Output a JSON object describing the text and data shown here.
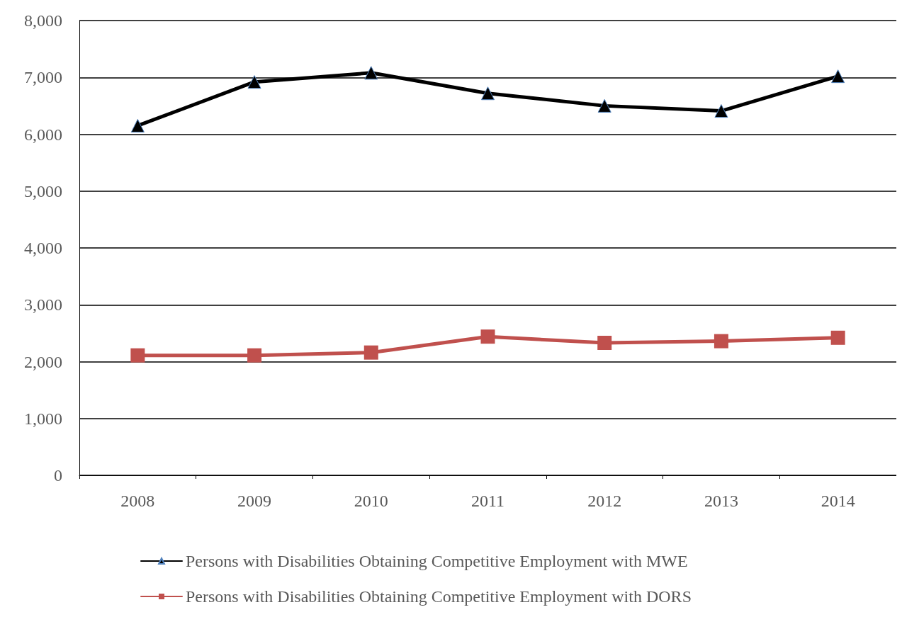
{
  "chart_data": {
    "type": "line",
    "categories": [
      "2008",
      "2009",
      "2010",
      "2011",
      "2012",
      "2013",
      "2014"
    ],
    "series": [
      {
        "name": "Persons with Disabilities Obtaining Competitive Employment with MWE",
        "color": "#000000",
        "marker": "triangle",
        "values": [
          6150,
          6920,
          7080,
          6720,
          6500,
          6410,
          7020
        ]
      },
      {
        "name": "Persons with Disabilities Obtaining Competitive Employment with DORS",
        "color": "#c0504d",
        "marker": "square",
        "values": [
          2110,
          2110,
          2160,
          2440,
          2330,
          2360,
          2420
        ]
      }
    ],
    "ylim": [
      0,
      8000
    ],
    "yticks": [
      {
        "value": 0,
        "label": "0"
      },
      {
        "value": 1000,
        "label": "1,000"
      },
      {
        "value": 2000,
        "label": "2,000"
      },
      {
        "value": 3000,
        "label": "3,000"
      },
      {
        "value": 4000,
        "label": "4,000"
      },
      {
        "value": 5000,
        "label": "5,000"
      },
      {
        "value": 6000,
        "label": "6,000"
      },
      {
        "value": 7000,
        "label": "7,000"
      },
      {
        "value": 8000,
        "label": "8,000"
      }
    ],
    "grid": "y",
    "legend": "bottom"
  }
}
